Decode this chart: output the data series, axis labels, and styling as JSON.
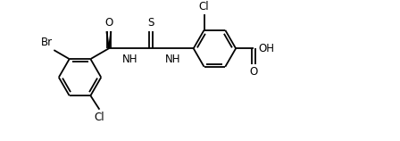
{
  "background": "#ffffff",
  "line_color": "#000000",
  "line_width": 1.3,
  "font_size": 8.5,
  "figure_size": [
    4.48,
    1.58
  ],
  "dpi": 100,
  "xlim": [
    0,
    9.0
  ],
  "ylim": [
    0,
    3.2
  ]
}
